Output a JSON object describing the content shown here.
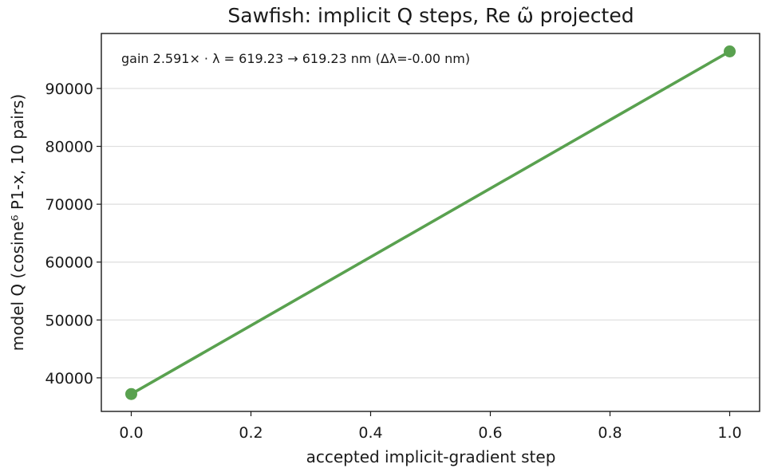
{
  "chart_data": {
    "type": "line",
    "title": "Sawfish: implicit Q steps, Re ω̃ projected",
    "xlabel": "accepted implicit-gradient step",
    "ylabel": "model Q (cosine⁶ P1-x, 10 pairs)",
    "annotation": "gain 2.591×  ·  λ = 619.23 → 619.23 nm  (Δλ=-0.00 nm)",
    "x": [
      0.0,
      1.0
    ],
    "series": [
      {
        "values": [
          37200,
          96400
        ],
        "color": "#59a14f"
      }
    ],
    "xlim": [
      -0.05,
      1.05
    ],
    "ylim": [
      34200,
      99500
    ],
    "xticks": [
      0.0,
      0.2,
      0.4,
      0.6,
      0.8,
      1.0
    ],
    "xtick_labels": [
      "0.0",
      "0.2",
      "0.4",
      "0.6",
      "0.8",
      "1.0"
    ],
    "yticks": [
      40000,
      50000,
      60000,
      70000,
      80000,
      90000
    ],
    "ytick_labels": [
      "40000",
      "50000",
      "60000",
      "70000",
      "80000",
      "90000"
    ],
    "grid": "y-only",
    "legend": "none"
  }
}
